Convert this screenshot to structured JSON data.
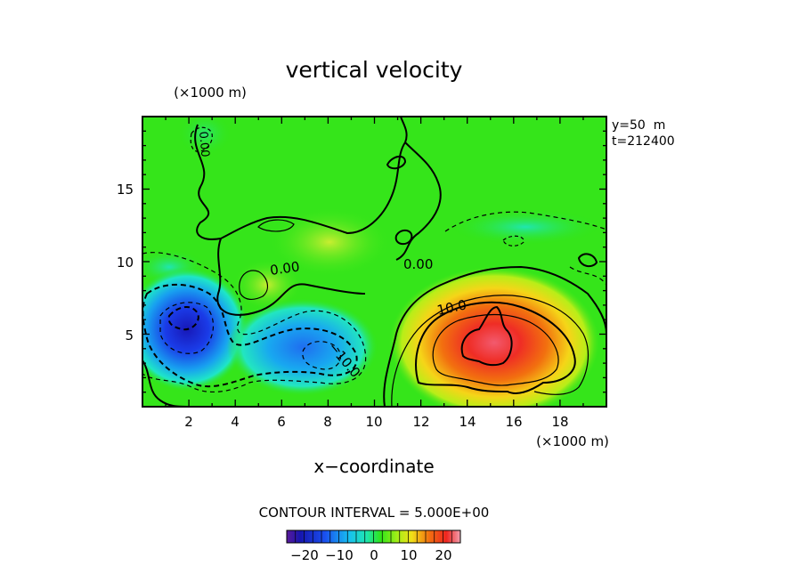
{
  "chart_data": {
    "type": "heatmap",
    "title": "vertical velocity",
    "xlabel": "x−coordinate",
    "x_unit": "(×1000 m)",
    "y_unit": "(×1000 m)",
    "xlim": [
      0,
      20
    ],
    "ylim": [
      0,
      20
    ],
    "x_ticks": [
      "2",
      "4",
      "6",
      "8",
      "10",
      "12",
      "14",
      "16",
      "18"
    ],
    "y_ticks": [
      "5",
      "10",
      "15"
    ],
    "info": [
      "y=50  m",
      "t=212400"
    ],
    "contour_interval_text": "CONTOUR INTERVAL = 5.000E+00",
    "contour_labels": [
      "0.00",
      "0.00",
      "10.0",
      "−10.0",
      "0.00"
    ],
    "colorbar": {
      "min": -25,
      "max": 25,
      "tick_labels": [
        "−20",
        "−10",
        "0",
        "10",
        "20"
      ],
      "tick_values": [
        -20,
        -10,
        0,
        10,
        20
      ]
    },
    "features": [
      {
        "kind": "updraft",
        "x": 15.0,
        "y": 4.5,
        "peak": 25
      },
      {
        "kind": "downdraft",
        "x": 1.8,
        "y": 5.8,
        "peak": -22
      },
      {
        "kind": "downdraft",
        "x": 7.5,
        "y": 3.8,
        "peak": -15
      }
    ]
  },
  "colors": {
    "background_field": "#2ee619",
    "updraft_core": "#f25a6e",
    "downdraft_core": "#1818b8"
  }
}
